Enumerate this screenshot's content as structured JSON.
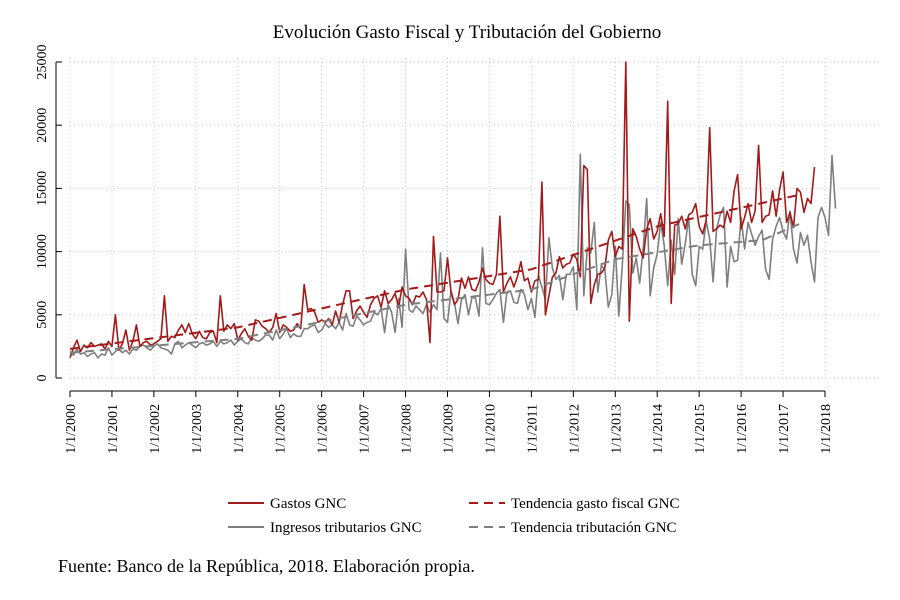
{
  "chart_data": {
    "type": "line",
    "title": "Evolución Gasto Fiscal y Tributación del Gobierno",
    "xlabel": "",
    "ylabel": "",
    "ylim": [
      0,
      25000
    ],
    "xlim": [
      2000,
      2018
    ],
    "grid": true,
    "y_ticks": [
      0,
      5000,
      10000,
      15000,
      20000,
      25000
    ],
    "x_ticks": [
      {
        "value": 2000,
        "label": "1/1/2000"
      },
      {
        "value": 2001,
        "label": "1/1/2001"
      },
      {
        "value": 2002,
        "label": "1/1/2002"
      },
      {
        "value": 2003,
        "label": "1/1/2003"
      },
      {
        "value": 2004,
        "label": "1/1/2004"
      },
      {
        "value": 2005,
        "label": "1/1/2005"
      },
      {
        "value": 2006,
        "label": "1/1/2006"
      },
      {
        "value": 2007,
        "label": "1/1/2007"
      },
      {
        "value": 2008,
        "label": "1/1/2008"
      },
      {
        "value": 2009,
        "label": "1/1/2009"
      },
      {
        "value": 2010,
        "label": "1/1/2010"
      },
      {
        "value": 2011,
        "label": "1/1/2011"
      },
      {
        "value": 2012,
        "label": "1/1/2012"
      },
      {
        "value": 2013,
        "label": "1/1/2013"
      },
      {
        "value": 2014,
        "label": "1/1/2014"
      },
      {
        "value": 2015,
        "label": "1/1/2015"
      },
      {
        "value": 2016,
        "label": "1/1/2016"
      },
      {
        "value": 2017,
        "label": "1/1/2017"
      },
      {
        "value": 2018,
        "label": "1/1/2018"
      }
    ],
    "legend_position": "bottom",
    "legend_columns": 2,
    "colors": {
      "gastos": "#a31a1a",
      "ingresos": "#7f7f7f",
      "grid": "#c8c8c8"
    },
    "series": [
      {
        "name": "Gastos GNC",
        "style": "solid",
        "color": "#a31a1a",
        "start": 2000.0,
        "step": 0.0833333,
        "values": [
          1600,
          2400,
          3000,
          2100,
          2600,
          2400,
          2800,
          2500,
          2600,
          2700,
          2300,
          2900,
          2500,
          5000,
          2200,
          2700,
          3800,
          2200,
          2900,
          4200,
          2500,
          2800,
          2900,
          2600,
          2700,
          2900,
          3100,
          6500,
          2900,
          3300,
          3200,
          3800,
          4200,
          3600,
          4300,
          3500,
          3100,
          3700,
          3200,
          3100,
          3600,
          3700,
          2800,
          6500,
          3700,
          4200,
          3900,
          4300,
          3000,
          3500,
          3900,
          3300,
          3000,
          4600,
          4500,
          4100,
          3900,
          3600,
          4000,
          5100,
          3600,
          4200,
          4000,
          3700,
          3800,
          4300,
          3900,
          7400,
          5400,
          5500,
          5200,
          4400,
          4600,
          4400,
          4700,
          4200,
          5300,
          4400,
          5800,
          6900,
          6900,
          4700,
          5300,
          5700,
          5200,
          4800,
          5800,
          6300,
          6500,
          5600,
          6900,
          5900,
          6200,
          6700,
          5600,
          7200,
          6500,
          6300,
          5800,
          6500,
          6400,
          6800,
          6200,
          2800,
          11200,
          6800,
          6800,
          6900,
          9500,
          6800,
          5800,
          6200,
          7900,
          7100,
          8000,
          7000,
          6900,
          7600,
          8700,
          7800,
          7500,
          7400,
          8200,
          12800,
          6800,
          7500,
          8000,
          7200,
          8000,
          9200,
          7700,
          7900,
          6800,
          7700,
          7800,
          15500,
          5000,
          6500,
          8000,
          8300,
          9600,
          8700,
          9000,
          9100,
          9800,
          9400,
          8000,
          16800,
          16500,
          5900,
          7400,
          8200,
          8300,
          8700,
          10900,
          11600,
          9600,
          10400,
          10200,
          25000,
          4500,
          11800,
          11200,
          10200,
          9500,
          11800,
          12600,
          11000,
          11600,
          13000,
          11200,
          21900,
          5900,
          12100,
          12200,
          12800,
          11800,
          12900,
          13100,
          13800,
          12000,
          11400,
          12500,
          19800,
          11600,
          11800,
          12100,
          11900,
          13200,
          12300,
          14800,
          16100,
          11800,
          12700,
          13800,
          12300,
          13200,
          18400,
          12300,
          12800,
          12900,
          14800,
          12800,
          14900,
          16300,
          12300,
          13100,
          11900,
          15000,
          14700,
          13100,
          14200,
          13800,
          16700
        ],
        "trend": [
          [
            2000.0,
            2300
          ],
          [
            2004.0,
            4000
          ],
          [
            2008.0,
            7000
          ],
          [
            2011.0,
            8600
          ],
          [
            2014.0,
            12000
          ],
          [
            2017.4,
            14500
          ]
        ]
      },
      {
        "name": "Ingresos tributarios GNC",
        "style": "solid",
        "color": "#7f7f7f",
        "start": 2000.0,
        "step": 0.0833333,
        "values": [
          2100,
          1800,
          2300,
          1900,
          2000,
          1700,
          1900,
          2000,
          1600,
          1900,
          1800,
          2400,
          1800,
          2100,
          2300,
          2000,
          2200,
          1900,
          2300,
          2200,
          2500,
          2600,
          2400,
          2200,
          2500,
          2700,
          2400,
          2300,
          2200,
          1900,
          2700,
          2900,
          2400,
          2600,
          2800,
          2600,
          2400,
          2700,
          2800,
          2600,
          2700,
          2900,
          2500,
          2900,
          2700,
          2800,
          3000,
          2600,
          2900,
          3100,
          2800,
          2700,
          3200,
          3000,
          2900,
          3100,
          3400,
          3400,
          3000,
          3800,
          3100,
          3500,
          3900,
          3200,
          3500,
          3300,
          3300,
          3900,
          3900,
          4100,
          4200,
          3600,
          3800,
          4300,
          4000,
          4200,
          3900,
          4400,
          3800,
          5100,
          4200,
          4100,
          4900,
          4600,
          4200,
          4400,
          4500,
          5200,
          5000,
          5500,
          3600,
          5800,
          5200,
          3600,
          6300,
          4000,
          10200,
          5400,
          5200,
          5700,
          5400,
          5100,
          5800,
          5200,
          5800,
          5400,
          9900,
          4700,
          4400,
          6900,
          5900,
          4300,
          6200,
          6600,
          5000,
          6400,
          6300,
          4900,
          10300,
          5900,
          5800,
          6200,
          6700,
          7000,
          4400,
          6800,
          6900,
          6000,
          5900,
          7000,
          6600,
          5400,
          6300,
          4800,
          8100,
          7200,
          6200,
          11100,
          8700,
          7800,
          8100,
          6200,
          8200,
          8200,
          8800,
          5400,
          17700,
          6500,
          10300,
          9900,
          12300,
          6800,
          8900,
          8600,
          5600,
          6600,
          10400,
          4900,
          8900,
          14000,
          13700,
          8300,
          9500,
          7500,
          10300,
          14200,
          6500,
          8700,
          9800,
          12300,
          10500,
          7300,
          10900,
          8200,
          12600,
          9000,
          10600,
          12700,
          8200,
          7300,
          10400,
          10200,
          12400,
          11000,
          7600,
          11800,
          12900,
          13500,
          7200,
          10400,
          9200,
          9300,
          12700,
          10200,
          12300,
          11400,
          10500,
          11200,
          11700,
          8600,
          7800,
          11000,
          12000,
          12700,
          11600,
          11000,
          13200,
          10200,
          9100,
          11500,
          10500,
          11300,
          9200,
          7600,
          12700,
          13500,
          12700,
          11300,
          17600,
          13400
        ],
        "trend": [
          [
            2000.0,
            2000
          ],
          [
            2004.0,
            3100
          ],
          [
            2008.0,
            5800
          ],
          [
            2011.0,
            7000
          ],
          [
            2013.0,
            9400
          ],
          [
            2015.0,
            10500
          ],
          [
            2016.5,
            10900
          ],
          [
            2017.4,
            12200
          ]
        ]
      }
    ],
    "legend": [
      {
        "label": "Gastos GNC",
        "style": "solid",
        "color": "#a31a1a"
      },
      {
        "label": "Tendencia gasto fiscal GNC",
        "style": "dashed",
        "color": "#a31a1a"
      },
      {
        "label": "Ingresos tributarios GNC",
        "style": "solid",
        "color": "#7f7f7f"
      },
      {
        "label": "Tendencia tributación GNC",
        "style": "dashed",
        "color": "#7f7f7f"
      }
    ]
  },
  "source_note": "Fuente: Banco de la República, 2018. Elaboración propia."
}
